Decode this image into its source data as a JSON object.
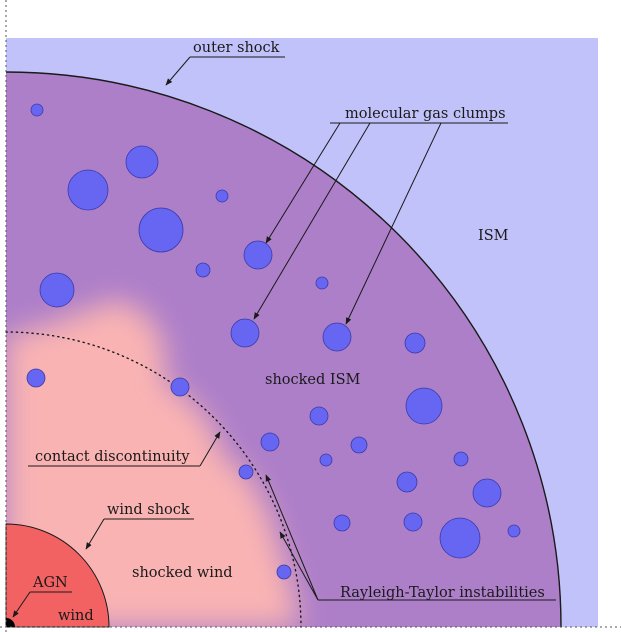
{
  "labels": {
    "outer_shock": "outer shock",
    "molecular_gas_clumps": "molecular gas clumps",
    "ism": "ISM",
    "shocked_ism": "shocked ISM",
    "contact_discontinuity": "contact discontinuity",
    "wind_shock": "wind shock",
    "shocked_wind": "shocked wind",
    "agn": "AGN",
    "wind": "wind",
    "rayleigh_taylor": "Rayleigh-Taylor instabilities"
  },
  "colors": {
    "ism": "#c2c2fa",
    "shocked_ism": "#ad7fc9",
    "shocked_wind": "#f9b3b3",
    "wind": "#f26262",
    "clump": "#6666f2",
    "line": "#1a1a1a"
  }
}
